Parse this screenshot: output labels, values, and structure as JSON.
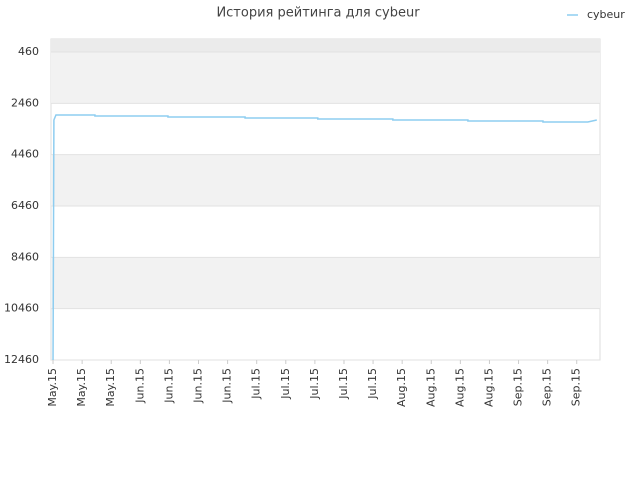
{
  "chart_data": {
    "type": "line",
    "title": "История рейтинга для cybeur",
    "x": [
      0,
      0.03,
      0.1,
      1.44,
      1.44,
      3.95,
      3.95,
      6.6,
      6.6,
      9.1,
      9.1,
      11.68,
      11.68,
      14.26,
      14.26,
      16.84,
      16.84,
      18.38,
      18.69
    ],
    "series": [
      {
        "name": "cybeur",
        "color": "#8ecdf0",
        "values": [
          12460,
          3109,
          2915,
          2915,
          2953,
          2953,
          2992,
          2992,
          3031,
          3031,
          3070,
          3070,
          3109,
          3109,
          3148,
          3148,
          3187,
          3187,
          3109
        ]
      }
    ],
    "xlim": [
      -0.07,
      18.8
    ],
    "xticks": [
      {
        "value": 0,
        "label": "May.15"
      },
      {
        "value": 1,
        "label": "May.15"
      },
      {
        "value": 2,
        "label": "May.15"
      },
      {
        "value": 3,
        "label": "Jun.15"
      },
      {
        "value": 4,
        "label": "Jun.15"
      },
      {
        "value": 5,
        "label": "Jun.15"
      },
      {
        "value": 6,
        "label": "Jun.15"
      },
      {
        "value": 7,
        "label": "Jul.15"
      },
      {
        "value": 8,
        "label": "Jul.15"
      },
      {
        "value": 9,
        "label": "Jul.15"
      },
      {
        "value": 10,
        "label": "Jul.15"
      },
      {
        "value": 11,
        "label": "Jul.15"
      },
      {
        "value": 12,
        "label": "Aug.15"
      },
      {
        "value": 13,
        "label": "Aug.15"
      },
      {
        "value": 14,
        "label": "Aug.15"
      },
      {
        "value": 15,
        "label": "Aug.15"
      },
      {
        "value": 16,
        "label": "Sep.15"
      },
      {
        "value": 17,
        "label": "Sep.15"
      },
      {
        "value": 18,
        "label": "Sep.15"
      }
    ],
    "ylim": [
      12460,
      -46
    ],
    "yticks": [
      460,
      2460,
      4460,
      6460,
      8460,
      10460,
      12460
    ],
    "grid": true,
    "legend": "top-right"
  }
}
